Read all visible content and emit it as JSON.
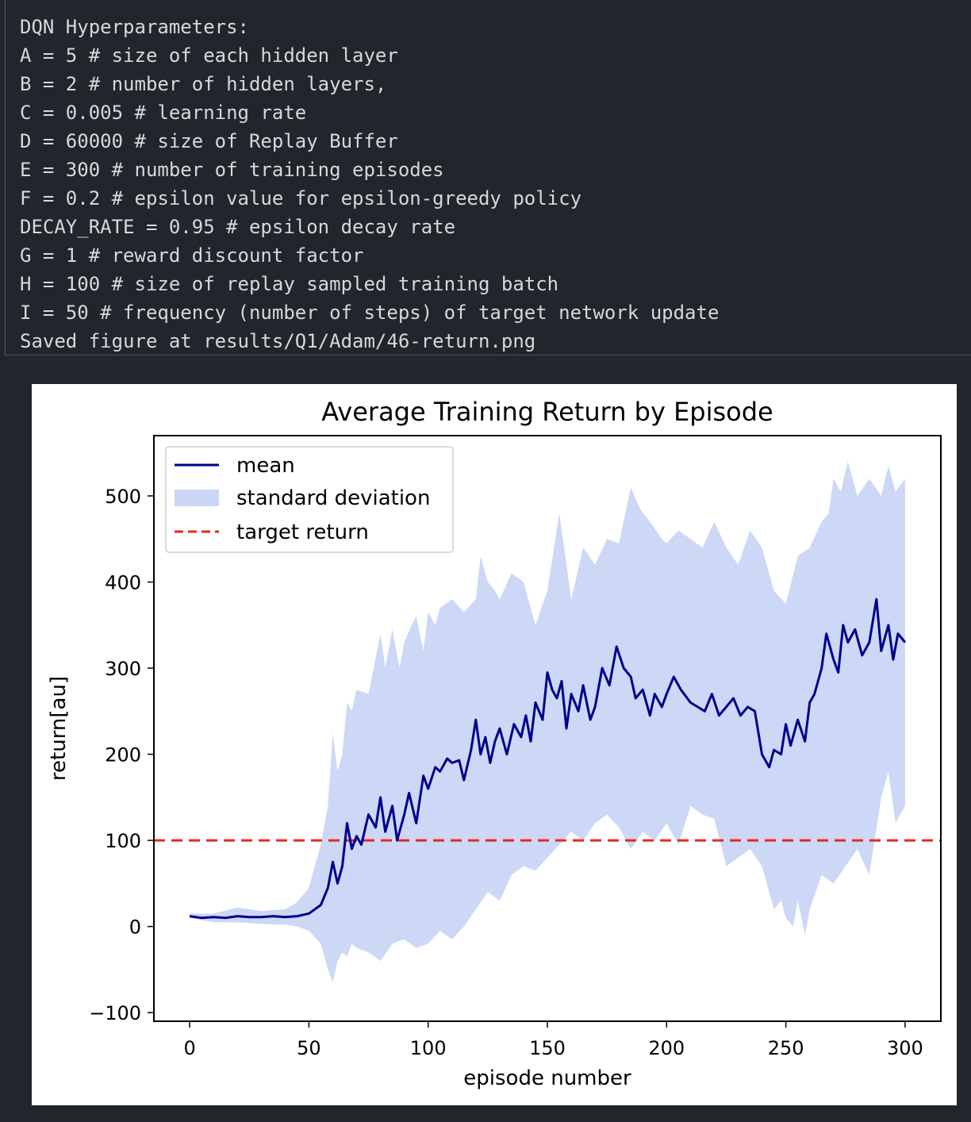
{
  "console": {
    "lines": [
      "DQN Hyperparameters:",
      "A = 5 # size of each hidden layer",
      "B = 2 # number of hidden layers,",
      "C = 0.005 # learning rate",
      "D = 60000 # size of Replay Buffer",
      "E = 300 # number of training episodes",
      "F = 0.2 # epsilon value for epsilon-greedy policy",
      "DECAY_RATE = 0.95 # epsilon decay rate",
      "G = 1 # reward discount factor",
      "H = 100 # size of replay sampled training batch",
      "I = 50 # frequency (number of steps) of target network update",
      "Saved figure at results/Q1/Adam/46-return.png"
    ]
  },
  "colors": {
    "background": "#22252b",
    "console_text": "#d6d8dc",
    "mean_line": "#00008b",
    "std_fill": "#c9d6f4",
    "target_line": "#e8291c"
  },
  "chart_data": {
    "type": "line",
    "title": "Average Training Return by Episode",
    "xlabel": "episode number",
    "ylabel": "return[au]",
    "xlim": [
      -15,
      315
    ],
    "ylim": [
      -110,
      570
    ],
    "xticks": [
      "0",
      "50",
      "100",
      "150",
      "200",
      "250",
      "300"
    ],
    "yticks": [
      "−100",
      "0",
      "100",
      "200",
      "300",
      "400",
      "500"
    ],
    "legend_position": "top-left",
    "grid": false,
    "legend": {
      "mean": "mean",
      "std": "standard deviation",
      "target": "target return"
    },
    "target_return": 100,
    "mean": {
      "x": [
        0,
        5,
        10,
        15,
        20,
        25,
        30,
        35,
        40,
        45,
        50,
        55,
        58,
        60,
        62,
        64,
        66,
        68,
        70,
        72,
        75,
        78,
        80,
        82,
        85,
        87,
        90,
        92,
        95,
        98,
        100,
        103,
        105,
        108,
        110,
        113,
        115,
        118,
        120,
        122,
        124,
        126,
        128,
        130,
        133,
        136,
        139,
        141,
        143,
        145,
        148,
        150,
        152,
        154,
        156,
        158,
        160,
        163,
        165,
        168,
        170,
        173,
        176,
        179,
        182,
        185,
        187,
        190,
        193,
        195,
        198,
        200,
        203,
        206,
        210,
        213,
        216,
        219,
        222,
        225,
        228,
        231,
        234,
        237,
        240,
        243,
        245,
        248,
        250,
        252,
        255,
        258,
        260,
        262,
        265,
        267,
        270,
        272,
        274,
        276,
        279,
        282,
        285,
        288,
        290,
        293,
        295,
        297,
        300
      ],
      "y": [
        12,
        10,
        11,
        10,
        12,
        11,
        11,
        12,
        11,
        12,
        15,
        25,
        45,
        75,
        50,
        70,
        120,
        90,
        105,
        95,
        130,
        115,
        150,
        110,
        140,
        100,
        130,
        155,
        120,
        175,
        160,
        185,
        180,
        195,
        190,
        193,
        170,
        205,
        240,
        200,
        220,
        190,
        215,
        230,
        200,
        235,
        220,
        245,
        215,
        260,
        240,
        295,
        275,
        265,
        285,
        230,
        270,
        250,
        280,
        240,
        255,
        300,
        280,
        325,
        300,
        290,
        265,
        275,
        245,
        270,
        255,
        270,
        290,
        275,
        260,
        255,
        250,
        270,
        245,
        255,
        265,
        245,
        255,
        250,
        200,
        185,
        205,
        200,
        235,
        210,
        240,
        215,
        260,
        270,
        300,
        340,
        310,
        295,
        350,
        330,
        345,
        315,
        330,
        380,
        320,
        350,
        310,
        340,
        330
      ]
    },
    "std_upper": {
      "x": [
        0,
        10,
        20,
        30,
        40,
        45,
        50,
        55,
        58,
        60,
        62,
        64,
        66,
        68,
        70,
        75,
        80,
        82,
        85,
        88,
        90,
        93,
        95,
        98,
        100,
        103,
        105,
        110,
        115,
        120,
        122,
        125,
        128,
        130,
        135,
        140,
        145,
        150,
        155,
        160,
        165,
        170,
        175,
        180,
        185,
        188,
        190,
        193,
        198,
        200,
        205,
        210,
        215,
        220,
        225,
        230,
        235,
        240,
        245,
        250,
        255,
        260,
        265,
        268,
        270,
        273,
        276,
        280,
        285,
        290,
        293,
        296,
        300
      ],
      "y": [
        15,
        15,
        22,
        18,
        20,
        28,
        45,
        95,
        140,
        225,
        180,
        200,
        260,
        250,
        275,
        270,
        340,
        300,
        345,
        300,
        330,
        350,
        360,
        320,
        365,
        350,
        370,
        380,
        365,
        380,
        430,
        400,
        390,
        380,
        410,
        400,
        350,
        390,
        480,
        380,
        440,
        420,
        450,
        445,
        510,
        490,
        480,
        470,
        450,
        445,
        460,
        450,
        440,
        470,
        440,
        420,
        460,
        440,
        390,
        375,
        430,
        440,
        470,
        480,
        520,
        505,
        540,
        500,
        520,
        500,
        535,
        505,
        520
      ]
    },
    "std_lower": {
      "x": [
        0,
        10,
        20,
        30,
        40,
        45,
        50,
        55,
        58,
        60,
        62,
        64,
        66,
        68,
        70,
        75,
        80,
        85,
        90,
        95,
        100,
        105,
        110,
        115,
        120,
        125,
        130,
        135,
        140,
        145,
        150,
        155,
        160,
        165,
        170,
        175,
        180,
        185,
        190,
        195,
        200,
        205,
        210,
        215,
        220,
        225,
        230,
        235,
        240,
        245,
        248,
        250,
        253,
        255,
        258,
        260,
        265,
        270,
        275,
        280,
        285,
        290,
        293,
        296,
        300
      ],
      "y": [
        10,
        5,
        5,
        3,
        2,
        0,
        -5,
        -20,
        -50,
        -65,
        -40,
        -30,
        -35,
        -20,
        -25,
        -30,
        -40,
        -20,
        -15,
        -25,
        -20,
        -5,
        -15,
        0,
        20,
        40,
        30,
        60,
        70,
        65,
        80,
        95,
        110,
        100,
        120,
        130,
        115,
        90,
        110,
        100,
        120,
        95,
        140,
        130,
        125,
        70,
        80,
        90,
        70,
        20,
        30,
        10,
        0,
        30,
        -10,
        20,
        60,
        50,
        70,
        90,
        60,
        150,
        180,
        120,
        140
      ]
    }
  }
}
